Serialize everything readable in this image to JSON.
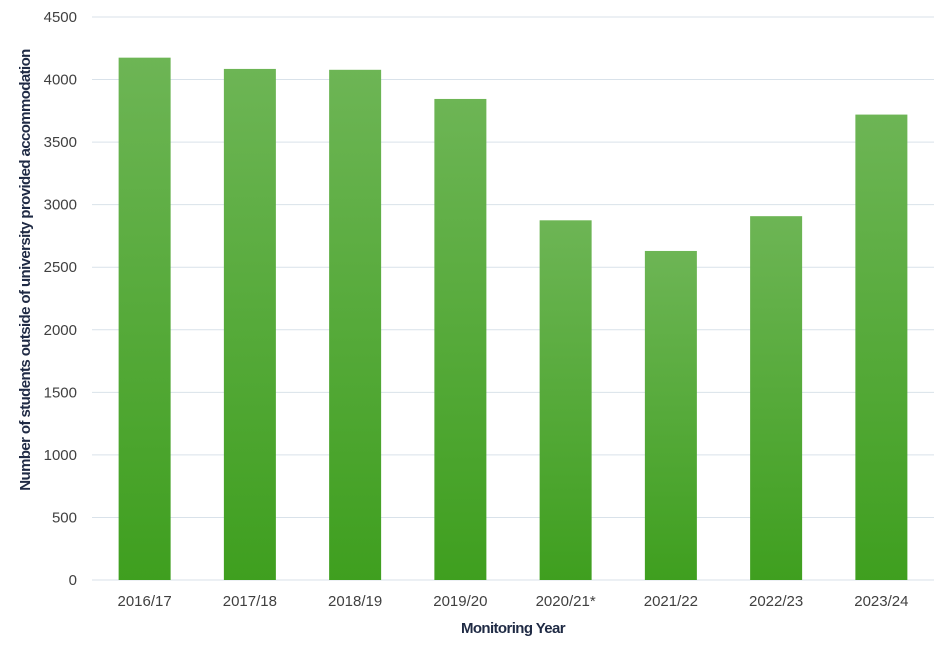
{
  "chart_data": {
    "type": "bar",
    "categories": [
      "2016/17",
      "2017/18",
      "2018/19",
      "2019/20",
      "2020/21*",
      "2021/22",
      "2022/23",
      "2023/24"
    ],
    "values": [
      4175,
      4085,
      4078,
      3845,
      2875,
      2630,
      2908,
      3720
    ],
    "title": "",
    "xlabel": "Monitoring Year",
    "ylabel": "Number of students outside of university provided accommodation",
    "ylim": [
      0,
      4500
    ],
    "yticks": [
      0,
      500,
      1000,
      1500,
      2000,
      2500,
      3000,
      3500,
      4000,
      4500
    ],
    "grid": true,
    "legend": "none",
    "colors": {
      "bar_top": "#6db555",
      "bar_bottom": "#3f9f1f",
      "grid": "#d9e2ea",
      "axis_title": "#1f2a44"
    }
  }
}
